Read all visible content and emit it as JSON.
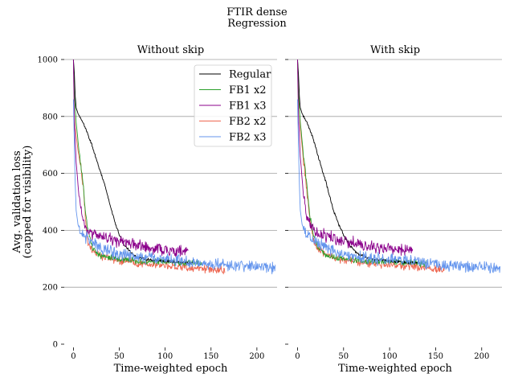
{
  "figure": {
    "title": "FTIR dense",
    "subtitle": "Regression",
    "ylabel_line1": "Avg. validation loss",
    "ylabel_line2": "(capped for visibility)",
    "xlabel": "Time-weighted epoch"
  },
  "colors": {
    "Regular": "#000000",
    "FB1 x2": "#2ca02c",
    "FB1 x3": "#8b008b",
    "FB2 x2": "#ee6650",
    "FB2 x3": "#6495ed",
    "grid": "#a0a0a0"
  },
  "chart_data": [
    {
      "type": "line",
      "title": "Without skip",
      "xlabel": "Time-weighted epoch",
      "ylabel": "Avg. validation loss (capped for visibility)",
      "xlim": [
        -10,
        222
      ],
      "ylim": [
        0,
        1000
      ],
      "xticks": [
        0,
        50,
        100,
        150,
        200
      ],
      "yticks": [
        0,
        200,
        400,
        600,
        800,
        1000
      ],
      "grid": "horizontal",
      "legend": "top-right",
      "series": [
        {
          "name": "Regular",
          "end_x": 130,
          "noise": 6,
          "points": [
            [
              0,
              1000
            ],
            [
              1,
              950
            ],
            [
              2,
              870
            ],
            [
              3,
              830
            ],
            [
              5,
              810
            ],
            [
              10,
              780
            ],
            [
              15,
              745
            ],
            [
              20,
              700
            ],
            [
              25,
              650
            ],
            [
              30,
              600
            ],
            [
              35,
              550
            ],
            [
              40,
              490
            ],
            [
              45,
              430
            ],
            [
              50,
              385
            ],
            [
              55,
              350
            ],
            [
              60,
              330
            ],
            [
              65,
              315
            ],
            [
              70,
              305
            ],
            [
              80,
              298
            ],
            [
              90,
              295
            ],
            [
              100,
              292
            ],
            [
              110,
              290
            ],
            [
              120,
              288
            ],
            [
              130,
              285
            ]
          ]
        },
        {
          "name": "FB1 x2",
          "end_x": 140,
          "noise": 14,
          "points": [
            [
              0,
              1000
            ],
            [
              1,
              880
            ],
            [
              3,
              780
            ],
            [
              6,
              680
            ],
            [
              10,
              580
            ],
            [
              13,
              470
            ],
            [
              15,
              420
            ],
            [
              18,
              370
            ],
            [
              20,
              340
            ],
            [
              25,
              320
            ],
            [
              30,
              310
            ],
            [
              40,
              302
            ],
            [
              50,
              298
            ],
            [
              70,
              292
            ],
            [
              90,
              290
            ],
            [
              110,
              288
            ],
            [
              140,
              284
            ]
          ]
        },
        {
          "name": "FB1 x3",
          "end_x": 125,
          "noise": 26,
          "points": [
            [
              0,
              1000
            ],
            [
              1,
              780
            ],
            [
              3,
              640
            ],
            [
              6,
              520
            ],
            [
              10,
              440
            ],
            [
              15,
              400
            ],
            [
              20,
              385
            ],
            [
              30,
              380
            ],
            [
              40,
              370
            ],
            [
              50,
              360
            ],
            [
              60,
              355
            ],
            [
              70,
              345
            ],
            [
              80,
              340
            ],
            [
              90,
              335
            ],
            [
              100,
              330
            ],
            [
              110,
              328
            ],
            [
              125,
              325
            ]
          ]
        },
        {
          "name": "FB2 x2",
          "end_x": 165,
          "noise": 18,
          "points": [
            [
              0,
              860
            ],
            [
              2,
              760
            ],
            [
              5,
              680
            ],
            [
              8,
              620
            ],
            [
              11,
              540
            ],
            [
              14,
              400
            ],
            [
              16,
              360
            ],
            [
              20,
              330
            ],
            [
              30,
              310
            ],
            [
              40,
              300
            ],
            [
              50,
              295
            ],
            [
              70,
              285
            ],
            [
              90,
              280
            ],
            [
              110,
              275
            ],
            [
              130,
              268
            ],
            [
              150,
              262
            ],
            [
              165,
              260
            ]
          ]
        },
        {
          "name": "FB2 x3",
          "end_x": 220,
          "noise": 26,
          "points": [
            [
              0,
              860
            ],
            [
              1,
              700
            ],
            [
              2,
              560
            ],
            [
              3,
              470
            ],
            [
              5,
              420
            ],
            [
              8,
              395
            ],
            [
              12,
              380
            ],
            [
              20,
              360
            ],
            [
              30,
              340
            ],
            [
              40,
              325
            ],
            [
              50,
              315
            ],
            [
              70,
              305
            ],
            [
              90,
              300
            ],
            [
              110,
              295
            ],
            [
              130,
              288
            ],
            [
              150,
              280
            ],
            [
              170,
              275
            ],
            [
              190,
              272
            ],
            [
              220,
              268
            ]
          ]
        }
      ]
    },
    {
      "type": "line",
      "title": "With skip",
      "xlabel": "Time-weighted epoch",
      "ylabel": "",
      "xlim": [
        -10,
        222
      ],
      "ylim": [
        0,
        1000
      ],
      "xticks": [
        0,
        50,
        100,
        150,
        200
      ],
      "yticks": [
        0,
        200,
        400,
        600,
        800,
        1000
      ],
      "grid": "horizontal",
      "legend": "none",
      "series": [
        {
          "name": "Regular",
          "end_x": 130,
          "noise": 6,
          "points": [
            [
              0,
              1000
            ],
            [
              1,
              950
            ],
            [
              2,
              870
            ],
            [
              3,
              830
            ],
            [
              5,
              810
            ],
            [
              10,
              780
            ],
            [
              15,
              740
            ],
            [
              20,
              690
            ],
            [
              25,
              630
            ],
            [
              30,
              580
            ],
            [
              35,
              520
            ],
            [
              40,
              460
            ],
            [
              45,
              420
            ],
            [
              50,
              385
            ],
            [
              55,
              355
            ],
            [
              60,
              335
            ],
            [
              65,
              320
            ],
            [
              70,
              310
            ],
            [
              80,
              300
            ],
            [
              90,
              296
            ],
            [
              100,
              292
            ],
            [
              110,
              290
            ],
            [
              120,
              287
            ],
            [
              130,
              285
            ]
          ]
        },
        {
          "name": "FB1 x2",
          "end_x": 140,
          "noise": 14,
          "points": [
            [
              0,
              1000
            ],
            [
              1,
              880
            ],
            [
              3,
              780
            ],
            [
              6,
              680
            ],
            [
              10,
              560
            ],
            [
              13,
              460
            ],
            [
              16,
              400
            ],
            [
              19,
              360
            ],
            [
              22,
              340
            ],
            [
              27,
              322
            ],
            [
              32,
              312
            ],
            [
              40,
              305
            ],
            [
              50,
              300
            ],
            [
              70,
              293
            ],
            [
              90,
              290
            ],
            [
              110,
              288
            ],
            [
              140,
              283
            ]
          ]
        },
        {
          "name": "FB1 x3",
          "end_x": 125,
          "noise": 26,
          "points": [
            [
              0,
              1000
            ],
            [
              1,
              800
            ],
            [
              3,
              660
            ],
            [
              6,
              540
            ],
            [
              10,
              450
            ],
            [
              15,
              410
            ],
            [
              20,
              390
            ],
            [
              30,
              380
            ],
            [
              40,
              372
            ],
            [
              50,
              362
            ],
            [
              60,
              355
            ],
            [
              70,
              348
            ],
            [
              80,
              342
            ],
            [
              90,
              338
            ],
            [
              100,
              333
            ],
            [
              110,
              330
            ],
            [
              125,
              325
            ]
          ]
        },
        {
          "name": "FB2 x2",
          "end_x": 160,
          "noise": 18,
          "points": [
            [
              0,
              1000
            ],
            [
              1,
              880
            ],
            [
              3,
              760
            ],
            [
              6,
              660
            ],
            [
              9,
              580
            ],
            [
              12,
              480
            ],
            [
              15,
              400
            ],
            [
              18,
              360
            ],
            [
              22,
              335
            ],
            [
              30,
              315
            ],
            [
              40,
              305
            ],
            [
              50,
              298
            ],
            [
              70,
              288
            ],
            [
              90,
              282
            ],
            [
              110,
              276
            ],
            [
              130,
              270
            ],
            [
              145,
              265
            ],
            [
              160,
              262
            ]
          ]
        },
        {
          "name": "FB2 x3",
          "end_x": 220,
          "noise": 26,
          "points": [
            [
              0,
              860
            ],
            [
              1,
              700
            ],
            [
              2,
              560
            ],
            [
              3,
              470
            ],
            [
              5,
              420
            ],
            [
              8,
              395
            ],
            [
              12,
              380
            ],
            [
              20,
              360
            ],
            [
              30,
              340
            ],
            [
              40,
              325
            ],
            [
              50,
              315
            ],
            [
              70,
              305
            ],
            [
              90,
              300
            ],
            [
              110,
              295
            ],
            [
              130,
              288
            ],
            [
              150,
              280
            ],
            [
              170,
              275
            ],
            [
              190,
              272
            ],
            [
              220,
              268
            ]
          ]
        }
      ]
    }
  ]
}
